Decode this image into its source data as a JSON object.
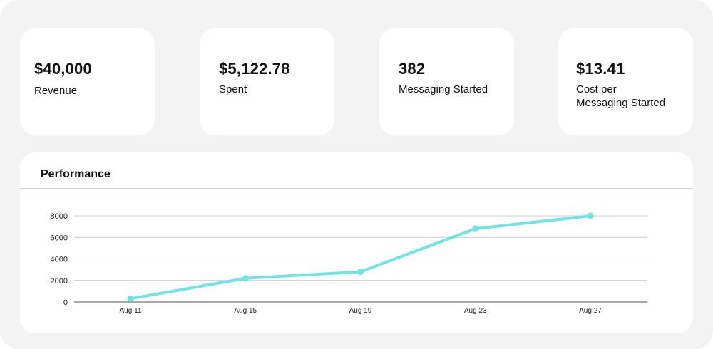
{
  "metrics": [
    {
      "value": "$40,000",
      "label": "Revenue"
    },
    {
      "value": "$5,122.78",
      "label": "Spent"
    },
    {
      "value": "382",
      "label": "Messaging Started"
    },
    {
      "value": "$13.41",
      "label": "Cost per\nMessaging Started"
    }
  ],
  "panel": {
    "title": "Performance"
  },
  "colors": {
    "line": "#6fe3e7",
    "grid": "#cccccc",
    "background": "#f3f3f3"
  },
  "chart_data": {
    "type": "line",
    "title": "",
    "xlabel": "",
    "ylabel": "",
    "categories": [
      "Aug 11",
      "Aug 15",
      "Aug 19",
      "Aug 23",
      "Aug 27"
    ],
    "series": [
      {
        "values": [
          300,
          2200,
          2800,
          6800,
          8000
        ]
      }
    ],
    "yticks": [
      "0",
      "2000",
      "4000",
      "6000",
      "8000"
    ],
    "ylim": [
      0,
      8000
    ],
    "grid": true,
    "legend": "none"
  }
}
